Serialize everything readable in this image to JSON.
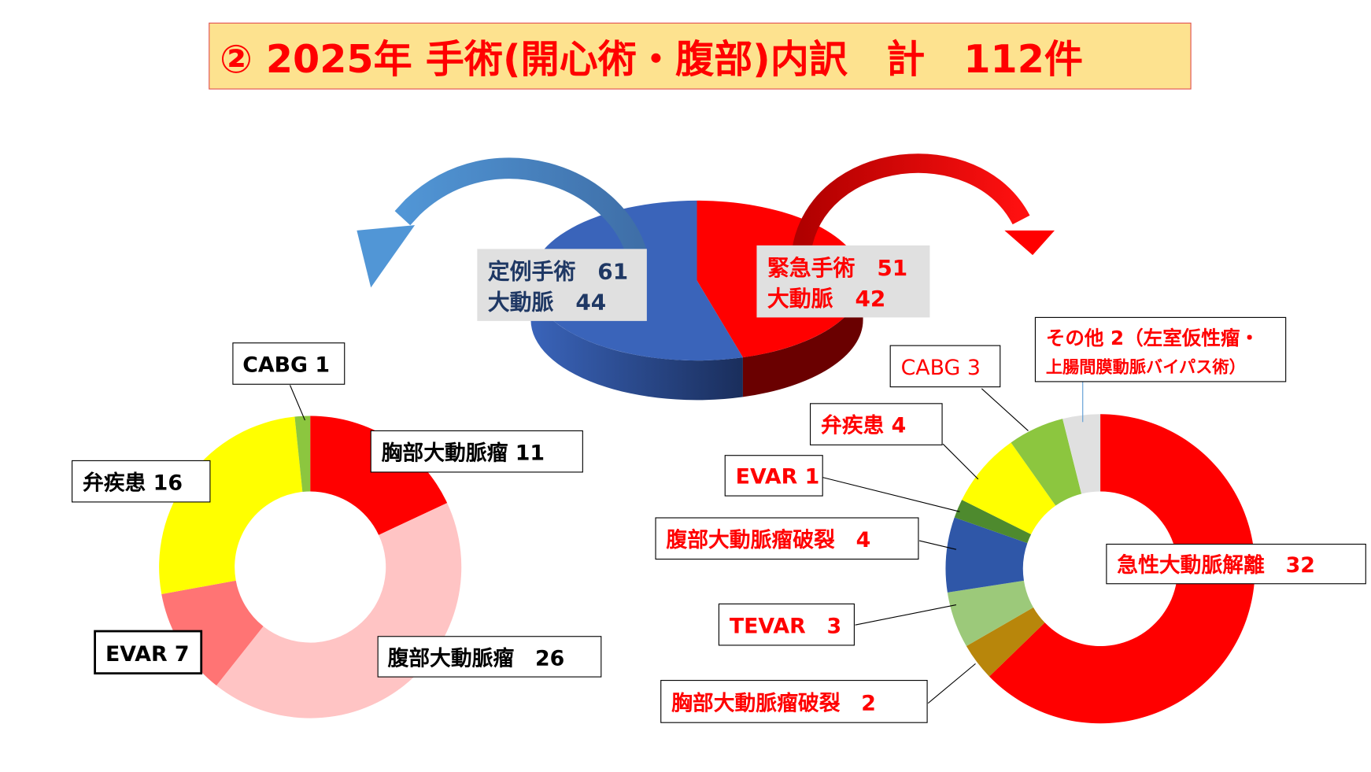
{
  "title": "② 2025年 手術(開心術・腹部)内訳　計　112件",
  "colors": {
    "title_bg": "#FDE28F",
    "title_text": "#FF0000",
    "elective": "#3A64BA",
    "emergency": "#FF0000",
    "elective_text": "#1F3864"
  },
  "chart_data": [
    {
      "type": "pie",
      "style": "3d",
      "labels": [
        "定例手術",
        "緊急手術"
      ],
      "values": [
        61,
        51
      ],
      "colors": [
        "#3A64BA",
        "#FF0000"
      ],
      "annotations": [
        {
          "line1": "定例手術　61",
          "line2": "大動脈　44"
        },
        {
          "line1": "緊急手術　51",
          "line2": "大動脈　42"
        }
      ]
    },
    {
      "type": "pie",
      "style": "donut",
      "parent": "定例手術",
      "categories": [
        "胸部大動脈瘤",
        "腹部大動脈瘤",
        "EVAR",
        "弁疾患",
        "CABG"
      ],
      "values": [
        11,
        26,
        7,
        16,
        1
      ],
      "colors": [
        "#FF0000",
        "#FFC4C4",
        "#FF7474",
        "#FFFF00",
        "#8CC63F"
      ],
      "labels": [
        "胸部大動脈瘤 11",
        "腹部大動脈瘤　26",
        "EVAR 7",
        "弁疾患 16",
        "CABG 1"
      ]
    },
    {
      "type": "pie",
      "style": "donut",
      "parent": "緊急手術",
      "categories": [
        "急性大動脈解離",
        "胸部大動脈瘤破裂",
        "TEVAR",
        "腹部大動脈瘤破裂",
        "EVAR",
        "弁疾患",
        "CABG",
        "その他"
      ],
      "values": [
        32,
        2,
        3,
        4,
        1,
        4,
        3,
        2
      ],
      "colors": [
        "#FF0000",
        "#B8860B",
        "#9CC97A",
        "#2F57A8",
        "#4E8A2E",
        "#FFFF00",
        "#8CC63F",
        "#E0E0E0"
      ],
      "labels": [
        "急性大動脈解離　32",
        "胸部大動脈瘤破裂　2",
        "TEVAR　3",
        "腹部大動脈瘤破裂　4",
        "EVAR 1",
        "弁疾患 4",
        "CABG 3",
        "その他 2（左室仮性瘤・",
        "上腸間膜動脈バイパス術）"
      ]
    }
  ]
}
